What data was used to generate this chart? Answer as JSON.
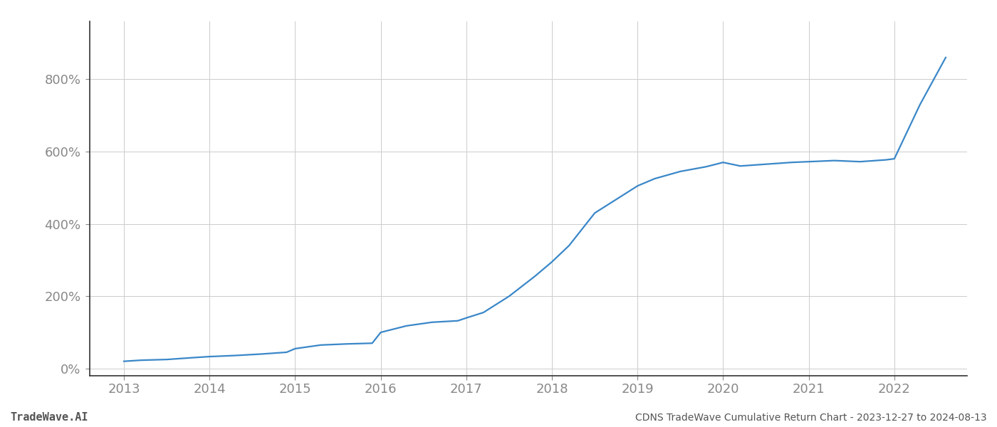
{
  "title": "CDNS TradeWave Cumulative Return Chart - 2023-12-27 to 2024-08-13",
  "watermark": "TradeWave.AI",
  "line_color": "#3a87c8",
  "background_color": "#ffffff",
  "grid_color": "#cccccc",
  "x_years": [
    2013,
    2014,
    2015,
    2016,
    2017,
    2018,
    2019,
    2020,
    2021,
    2022
  ],
  "x_values": [
    2013.0,
    2013.2,
    2013.5,
    2013.8,
    2014.0,
    2014.3,
    2014.6,
    2014.9,
    2015.0,
    2015.3,
    2015.6,
    2015.9,
    2016.0,
    2016.3,
    2016.6,
    2016.9,
    2017.0,
    2017.2,
    2017.5,
    2017.8,
    2018.0,
    2018.2,
    2018.5,
    2018.8,
    2019.0,
    2019.2,
    2019.5,
    2019.8,
    2020.0,
    2020.2,
    2020.5,
    2020.8,
    2021.0,
    2021.3,
    2021.6,
    2021.9,
    2022.0,
    2022.3,
    2022.6
  ],
  "y_values": [
    20,
    23,
    25,
    30,
    33,
    36,
    40,
    45,
    55,
    65,
    68,
    70,
    100,
    118,
    128,
    132,
    140,
    155,
    200,
    255,
    295,
    340,
    430,
    475,
    505,
    525,
    545,
    558,
    570,
    560,
    565,
    570,
    572,
    575,
    572,
    577,
    580,
    730,
    860
  ],
  "yticks": [
    0,
    200,
    400,
    600,
    800
  ],
  "ytick_labels": [
    "0%",
    "200%",
    "400%",
    "600%",
    "800%"
  ],
  "ylim": [
    -20,
    960
  ],
  "xlim": [
    2012.6,
    2022.85
  ],
  "title_fontsize": 10,
  "watermark_fontsize": 11,
  "tick_fontsize": 13,
  "tick_color": "#888888",
  "title_color": "#555555",
  "watermark_color": "#555555",
  "spine_color": "#333333",
  "line_width": 1.6,
  "left_spine_color": "#333333"
}
